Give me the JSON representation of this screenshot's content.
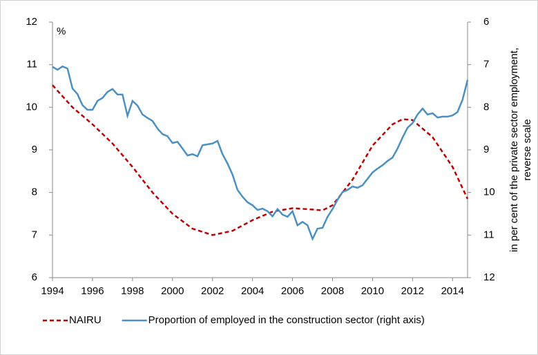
{
  "chart_data": {
    "type": "line",
    "y_unit": "%",
    "y2label": [
      "in per cent of the private sector employment,",
      "reverse scale"
    ],
    "xlim": [
      1994,
      2014.75
    ],
    "xticks": [
      1994,
      1996,
      1998,
      2000,
      2002,
      2004,
      2006,
      2008,
      2010,
      2012,
      2014
    ],
    "ylim": [
      6,
      12
    ],
    "yticks": [
      6,
      7,
      8,
      9,
      10,
      11,
      12
    ],
    "y2lim": [
      12,
      6
    ],
    "y2ticks": [
      6,
      7,
      8,
      9,
      10,
      11,
      12
    ],
    "legend": "bottom",
    "series": [
      {
        "name": "NAIRU",
        "color": "#c00000",
        "dash": true,
        "x": [
          1994,
          1995,
          1996,
          1997,
          1998,
          1999,
          2000,
          2001,
          2002,
          2003,
          2004,
          2005,
          2006,
          2007,
          2007.5,
          2008,
          2009,
          2010,
          2011,
          2011.5,
          2012,
          2013,
          2014,
          2014.75
        ],
        "values": [
          10.52,
          10.0,
          9.6,
          9.15,
          8.6,
          8.0,
          7.5,
          7.15,
          7.0,
          7.1,
          7.35,
          7.55,
          7.63,
          7.6,
          7.58,
          7.7,
          8.3,
          9.1,
          9.6,
          9.72,
          9.7,
          9.3,
          8.6,
          7.85
        ]
      },
      {
        "name": "Proportion of employed in the construction sector (right axis)",
        "color": "#4a90c4",
        "axis": "y2",
        "x": [
          1994,
          1994.25,
          1994.5,
          1994.75,
          1995,
          1995.25,
          1995.5,
          1995.75,
          1996,
          1996.25,
          1996.5,
          1996.75,
          1997,
          1997.25,
          1997.5,
          1997.75,
          1998,
          1998.25,
          1998.5,
          1998.75,
          1999,
          1999.25,
          1999.5,
          1999.75,
          2000,
          2000.25,
          2000.5,
          2000.75,
          2001,
          2001.25,
          2001.5,
          2001.75,
          2002,
          2002.25,
          2002.5,
          2002.75,
          2003,
          2003.25,
          2003.5,
          2003.75,
          2004,
          2004.25,
          2004.5,
          2004.75,
          2005,
          2005.25,
          2005.5,
          2005.75,
          2006,
          2006.25,
          2006.5,
          2006.75,
          2007,
          2007.25,
          2007.5,
          2007.75,
          2008,
          2008.25,
          2008.5,
          2008.75,
          2009,
          2009.25,
          2009.5,
          2009.75,
          2010,
          2010.25,
          2010.5,
          2010.75,
          2011,
          2011.25,
          2011.5,
          2011.75,
          2012,
          2012.25,
          2012.5,
          2012.75,
          2013,
          2013.25,
          2013.5,
          2013.75,
          2014,
          2014.25,
          2014.5,
          2014.75
        ],
        "values": [
          7.05,
          7.12,
          7.04,
          7.09,
          7.56,
          7.69,
          7.95,
          8.06,
          8.06,
          7.85,
          7.78,
          7.64,
          7.57,
          7.7,
          7.7,
          8.2,
          7.85,
          7.96,
          8.17,
          8.25,
          8.32,
          8.5,
          8.63,
          8.68,
          8.84,
          8.81,
          8.97,
          9.13,
          9.1,
          9.15,
          8.89,
          8.87,
          8.85,
          8.79,
          9.1,
          9.32,
          9.58,
          9.94,
          10.1,
          10.23,
          10.3,
          10.41,
          10.38,
          10.44,
          10.56,
          10.39,
          10.52,
          10.57,
          10.44,
          10.77,
          10.69,
          10.77,
          11.09,
          10.85,
          10.83,
          10.57,
          10.39,
          10.17,
          9.99,
          9.94,
          9.86,
          9.89,
          9.83,
          9.68,
          9.53,
          9.44,
          9.36,
          9.26,
          9.18,
          8.97,
          8.71,
          8.48,
          8.37,
          8.17,
          8.03,
          8.17,
          8.14,
          8.24,
          8.22,
          8.22,
          8.19,
          8.11,
          7.82,
          7.36
        ]
      }
    ]
  }
}
